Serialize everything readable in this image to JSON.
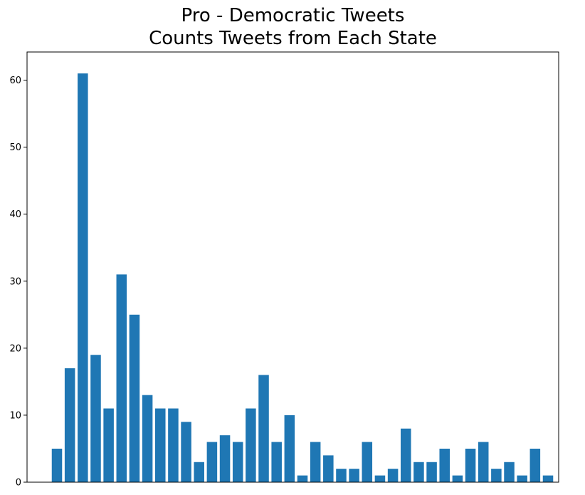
{
  "chart_data": {
    "type": "bar",
    "title_line1": "Pro - Democratic Tweets",
    "title_line2": "Counts Tweets from Each State",
    "xlabel": "",
    "ylabel": "",
    "ylim": [
      0,
      64.2
    ],
    "yticks": [
      0,
      10,
      20,
      30,
      40,
      50,
      60
    ],
    "bar_color": "#1f77b4",
    "grid": false,
    "values": [
      5,
      17,
      61,
      19,
      11,
      31,
      25,
      13,
      11,
      11,
      9,
      3,
      6,
      7,
      6,
      11,
      16,
      6,
      10,
      1,
      6,
      4,
      2,
      2,
      6,
      1,
      2,
      8,
      3,
      3,
      5,
      1,
      5,
      6,
      2,
      3,
      1,
      5,
      1
    ]
  }
}
